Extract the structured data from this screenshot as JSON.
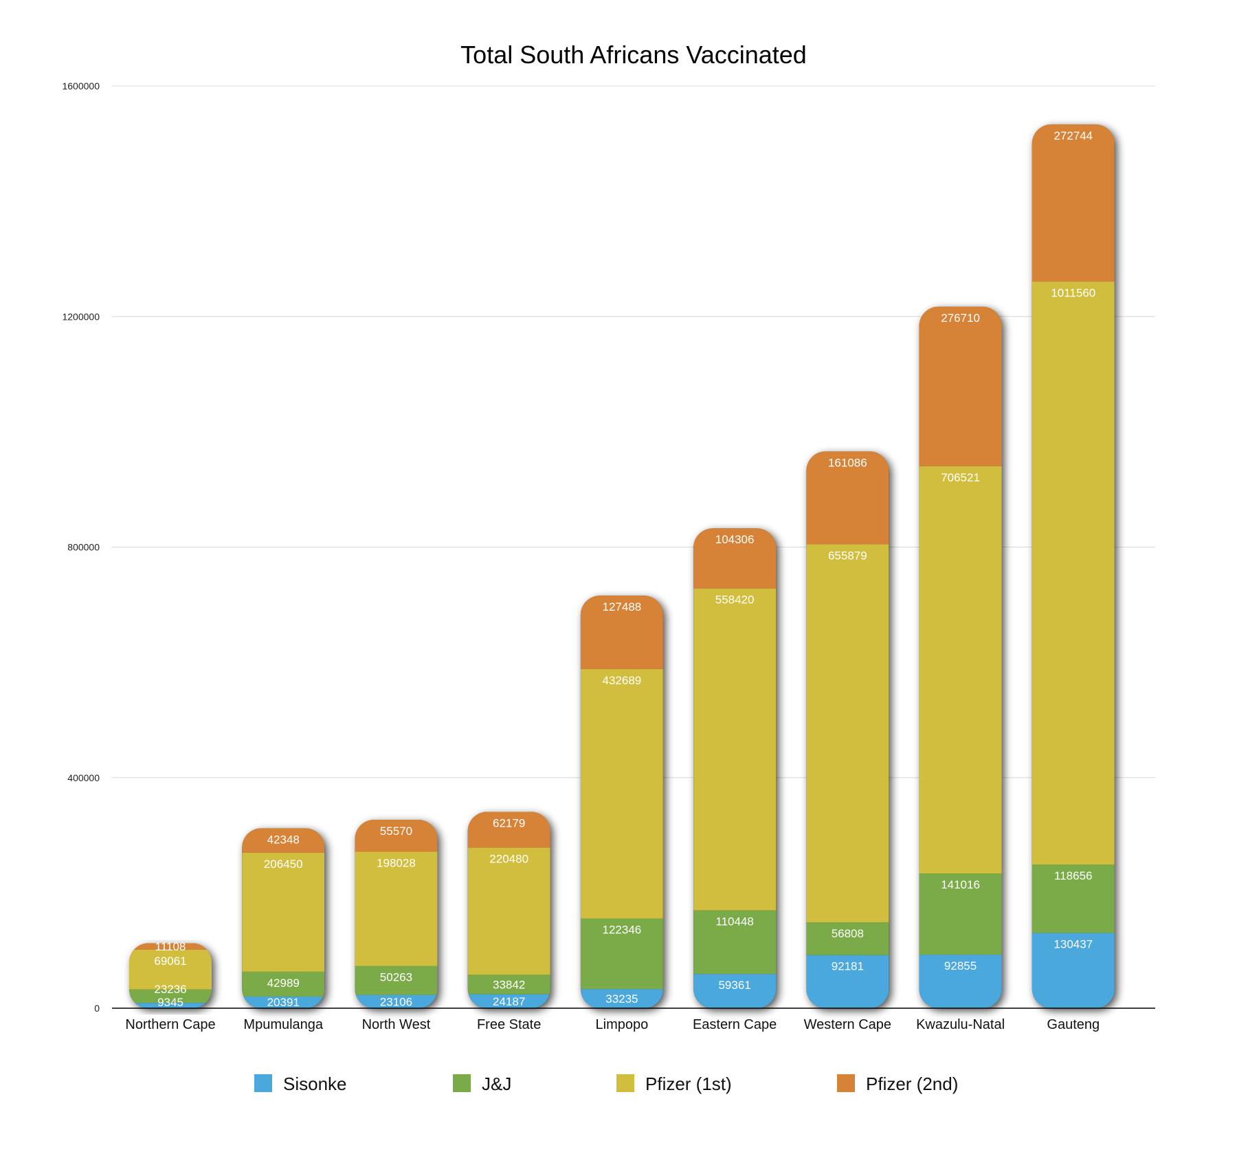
{
  "chart_data": {
    "type": "bar",
    "stacked": true,
    "title": "Total South Africans Vaccinated",
    "xlabel": "",
    "ylabel": "",
    "ylim": [
      0,
      1600000
    ],
    "yticks": [
      "0",
      "400000",
      "800000",
      "1200000",
      "1600000"
    ],
    "grid": true,
    "legend_position": "bottom",
    "categories": [
      "Northern Cape",
      "Mpumulanga",
      "North West",
      "Free State",
      "Limpopo",
      "Eastern Cape",
      "Western Cape",
      "Kwazulu-Natal",
      "Gauteng"
    ],
    "series": [
      {
        "name": "Sisonke",
        "color": "#4aa8dc",
        "values": [
          9345,
          20391,
          23106,
          24187,
          33235,
          59361,
          92181,
          92855,
          130437
        ]
      },
      {
        "name": "J&J",
        "color": "#7aab48",
        "values": [
          23236,
          42989,
          50263,
          33842,
          122346,
          110448,
          56808,
          141016,
          118656
        ]
      },
      {
        "name": "Pfizer (1st)",
        "color": "#d2be3e",
        "values": [
          69061,
          206450,
          198028,
          220480,
          432689,
          558420,
          655879,
          706521,
          1011560
        ]
      },
      {
        "name": "Pfizer (2nd)",
        "color": "#d68338",
        "values": [
          11108,
          42348,
          55570,
          62179,
          127488,
          104306,
          161086,
          276710,
          272744
        ]
      }
    ]
  }
}
